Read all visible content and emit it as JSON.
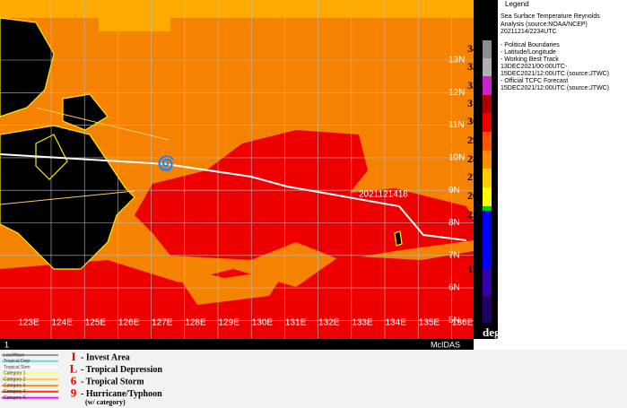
{
  "map": {
    "latitude_labels": [
      "13N",
      "12N",
      "11N",
      "10N",
      "9N",
      "8N",
      "7N",
      "6N",
      "5N"
    ],
    "longitude_labels": [
      "123E",
      "124E",
      "125E",
      "126E",
      "127E",
      "128E",
      "129E",
      "130E",
      "131E",
      "132E",
      "133E",
      "134E",
      "135E",
      "136E"
    ],
    "track_label": "2021121418",
    "footer_left": "1",
    "footer_right": "McIDAS"
  },
  "legend": {
    "title": "Legend",
    "lines": [
      "Sea Surface Temperature  Reynolds",
      "Analysis  (source:NOAA/NCEP)",
      "20211214/2234UTC",
      "- Political Boundaries",
      "- Latitude/Longitude",
      "- Working Best Track",
      "13DEC2021/00:00UTC-",
      "15DEC2021/12:00UTC  (source:JTWC)",
      "- Official TCFC Forecast",
      "15DEC2021/12:00UTC  (source:JTWC)"
    ]
  },
  "colorbar": {
    "labels": [
      "34",
      "33",
      "32",
      "31",
      "30",
      "29",
      "28",
      "27",
      "26",
      "25",
      "15",
      "5"
    ],
    "unit": "degC"
  },
  "key": {
    "lines": [
      "Low/Wave",
      "Tropical Depr",
      "Tropical Strm",
      "Category 1",
      "Category 2",
      "Category 3",
      "Category 4",
      "Category 5"
    ],
    "symbols": [
      "- Invest Area",
      "- Tropical Depression",
      "- Tropical Storm",
      "- Hurricane/Typhoon"
    ],
    "note": "(w/ category)"
  }
}
